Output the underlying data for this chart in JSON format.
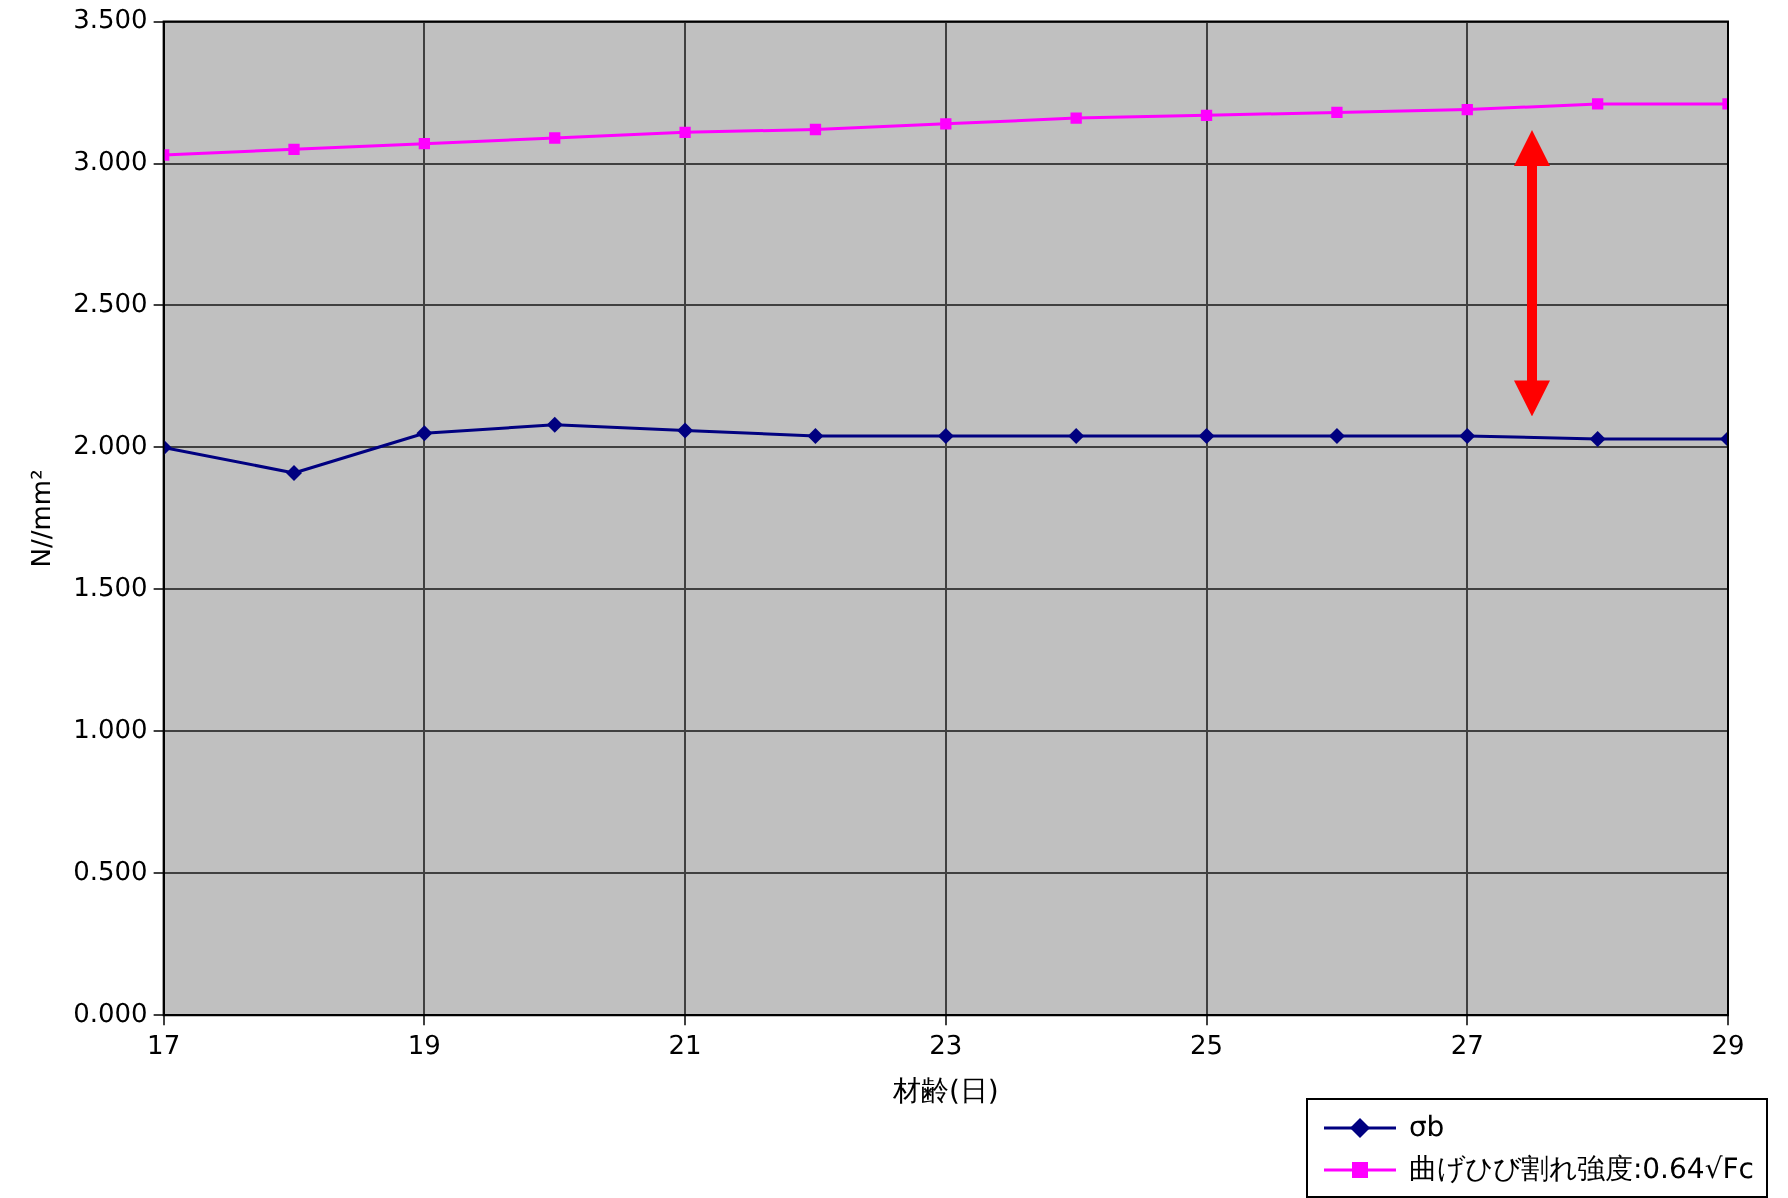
{
  "chart_data": {
    "type": "line",
    "xlabel": "材齢(日)",
    "ylabel": "N//mm²",
    "x": [
      17,
      18,
      19,
      20,
      21,
      22,
      23,
      24,
      25,
      26,
      27,
      28,
      29
    ],
    "series": [
      {
        "name": "σb",
        "color": "#000080",
        "marker": "diamond",
        "values": [
          2.0,
          1.91,
          2.05,
          2.08,
          2.06,
          2.04,
          2.04,
          2.04,
          2.04,
          2.04,
          2.04,
          2.03,
          2.03
        ]
      },
      {
        "name": "曲げひび割れ強度:0.64√Fc",
        "color": "#ff00ff",
        "marker": "square",
        "values": [
          3.03,
          3.05,
          3.07,
          3.09,
          3.11,
          3.12,
          3.14,
          3.16,
          3.17,
          3.18,
          3.19,
          3.21,
          3.21
        ]
      }
    ],
    "xlim": [
      17,
      29
    ],
    "xticks": [
      17,
      19,
      21,
      23,
      25,
      27,
      29
    ],
    "ylim": [
      0,
      3.5
    ],
    "yticks": [
      {
        "value": 0,
        "label": "0.000"
      },
      {
        "value": 0.5,
        "label": "0.500"
      },
      {
        "value": 1,
        "label": "1.000"
      },
      {
        "value": 1.5,
        "label": "1.500"
      },
      {
        "value": 2,
        "label": "2.000"
      },
      {
        "value": 2.5,
        "label": "2.500"
      },
      {
        "value": 3,
        "label": "3.000"
      },
      {
        "value": 3.5,
        "label": "3.500"
      }
    ],
    "grid": true,
    "legend": "bottom right",
    "line_style": "solid"
  }
}
